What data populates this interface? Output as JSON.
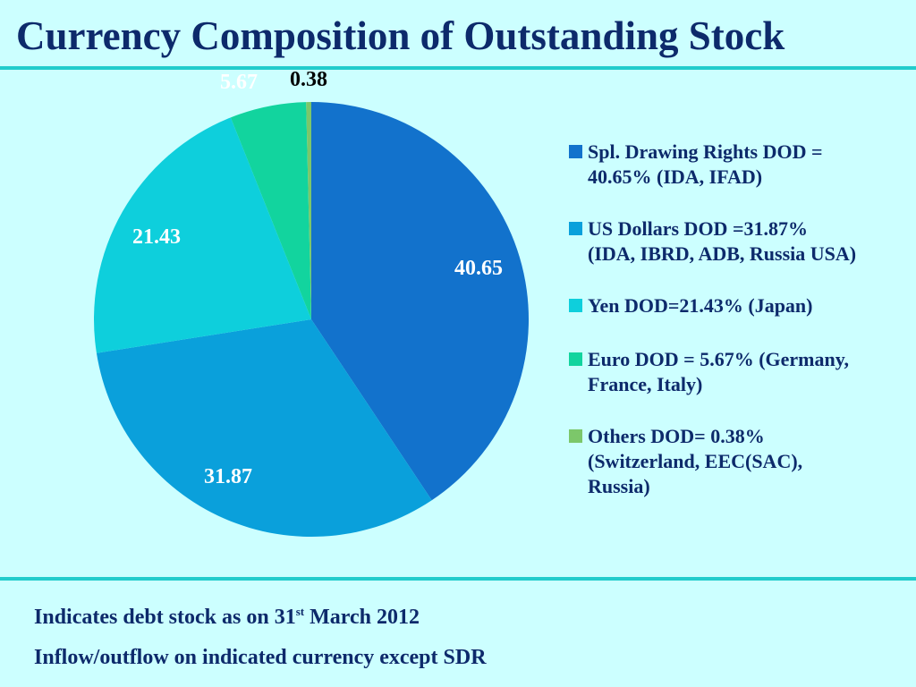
{
  "title": "Currency Composition of Outstanding Stock",
  "colors": {
    "background": "#ccffff",
    "title": "#0d2a6b",
    "rule": "#22cccc"
  },
  "chart_data": {
    "type": "pie",
    "title": "",
    "legend_position": "right",
    "slices": [
      {
        "label": "Spl. Drawing Rights DOD = \n40.65% (IDA, IFAD)",
        "value": 40.65,
        "data_label": "40.65",
        "color": "#1272cc",
        "label_color": "#ffffff"
      },
      {
        "label": "US Dollars DOD =31.87% \n(IDA, IBRD, ADB, Russia USA)",
        "value": 31.87,
        "data_label": "31.87",
        "color": "#0aa0db",
        "label_color": "#ffffff"
      },
      {
        "label": "Yen DOD=21.43% (Japan)",
        "value": 21.43,
        "data_label": "21.43",
        "color": "#0ecfdc",
        "label_color": "#ffffff"
      },
      {
        "label": "Euro DOD = 5.67% (Germany, \nFrance, Italy)",
        "value": 5.67,
        "data_label": "5.67",
        "color": "#12d49e",
        "label_color": "#ffffff"
      },
      {
        "label": "Others DOD= 0.38% \n(Switzerland, EEC(SAC), \nRussia)",
        "value": 0.38,
        "data_label": "0.38",
        "color": "#7cc76a",
        "label_color": "#000000"
      }
    ]
  },
  "footer": {
    "line1_text": "Indicates debt stock as on 31",
    "line1_sup": "st",
    "line1_rest": " March 2012",
    "line2": "Inflow/outflow on indicated currency except SDR"
  }
}
